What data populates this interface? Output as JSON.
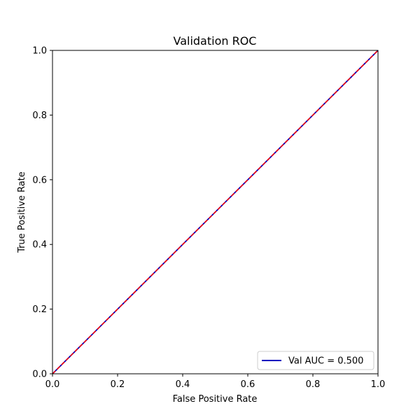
{
  "chart_data": {
    "type": "line",
    "title": "Validation ROC",
    "xlabel": "False Positive Rate",
    "ylabel": "True Positive Rate",
    "xlim": [
      0.0,
      1.0
    ],
    "ylim": [
      0.0,
      1.0
    ],
    "x_ticks": [
      "0.0",
      "0.2",
      "0.4",
      "0.6",
      "0.8",
      "1.0"
    ],
    "y_ticks": [
      "0.0",
      "0.2",
      "0.4",
      "0.6",
      "0.8",
      "1.0"
    ],
    "grid": false,
    "legend_position": "lower-right",
    "series": [
      {
        "name": "Val AUC = 0.500",
        "x": [
          0.0,
          1.0
        ],
        "y": [
          0.0,
          1.0
        ],
        "color": "#0000bf",
        "style": "solid"
      },
      {
        "x": [
          0.0,
          1.0
        ],
        "y": [
          0.0,
          1.0
        ],
        "color": "#ff0000",
        "style": "dashed"
      }
    ]
  }
}
